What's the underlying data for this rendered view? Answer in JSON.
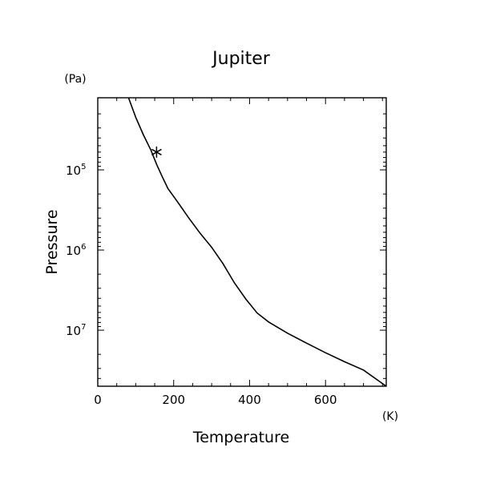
{
  "chart_data": {
    "type": "line",
    "title": "Jupiter",
    "xlabel": "Temperature",
    "ylabel": "Pressure",
    "x_unit": "(K)",
    "y_unit": "(Pa)",
    "xlim": [
      0,
      760
    ],
    "ylim": [
      12600,
      50000000
    ],
    "y_scale": "log",
    "y_inverted": true,
    "grid": false,
    "x_ticks": [
      0,
      200,
      400,
      600
    ],
    "y_ticks": [
      {
        "base": "10",
        "exp": "5",
        "value": 100000
      },
      {
        "base": "10",
        "exp": "6",
        "value": 1000000
      },
      {
        "base": "10",
        "exp": "7",
        "value": 10000000
      }
    ],
    "series": [
      {
        "x": [
          81,
          100,
          120,
          140,
          155,
          170,
          185,
          210,
          240,
          270,
          300,
          330,
          360,
          390,
          420,
          450,
          500,
          550,
          600,
          650,
          700,
          760
        ],
        "y": [
          12600,
          22100,
          36300,
          56700,
          85400,
          122000,
          171000,
          250000,
          400000,
          620000,
          925000,
          1480000,
          2570000,
          4080000,
          6100000,
          7900000,
          10900000,
          14500000,
          19100000,
          24700000,
          31400000,
          50000000
        ]
      }
    ],
    "marker": {
      "symbol": "asterisk",
      "x": 155,
      "y": 60000
    }
  }
}
